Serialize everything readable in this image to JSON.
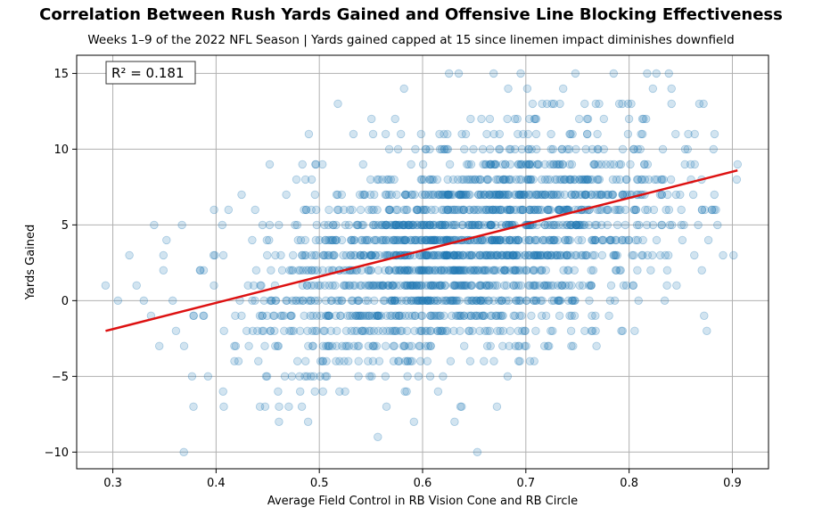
{
  "chart_data": {
    "type": "scatter",
    "title": "Correlation Between Rush Yards Gained and Offensive Line Blocking Effectiveness",
    "subtitle": "Weeks 1–9 of the 2022 NFL Season | Yards gained capped at 15 since linemen impact diminishes downfield",
    "xlabel": "Average Field Control in RB Vision Cone and RB Circle",
    "ylabel": "Yards Gained",
    "xlim": [
      0.265,
      0.935
    ],
    "ylim": [
      -11.1,
      16.2
    ],
    "xticks": [
      "0.3",
      "0.4",
      "0.5",
      "0.6",
      "0.7",
      "0.8",
      "0.9"
    ],
    "xtick_values": [
      0.3,
      0.4,
      0.5,
      0.6,
      0.7,
      0.8,
      0.9
    ],
    "yticks": [
      "−10",
      "−5",
      "0",
      "5",
      "10",
      "15"
    ],
    "ytick_values": [
      -10,
      -5,
      0,
      5,
      10,
      15
    ],
    "grid": true,
    "annotation": "R² = 0.181",
    "point_color": "#1f77b4",
    "point_alpha": 0.2,
    "line_color": "#dd1111",
    "regression": {
      "x": [
        0.293,
        0.905
      ],
      "y": [
        -2.0,
        8.6
      ]
    },
    "sample_points": {
      "x": [
        0.293,
        0.305,
        0.316,
        0.323,
        0.33,
        0.337,
        0.34,
        0.345,
        0.349,
        0.352,
        0.358,
        0.367,
        0.369,
        0.388,
        0.398,
        0.407,
        0.412,
        0.423,
        0.435,
        0.445,
        0.457,
        0.468,
        0.48,
        0.497,
        0.503,
        0.512,
        0.518,
        0.525,
        0.533,
        0.54,
        0.548,
        0.556,
        0.565,
        0.573,
        0.582,
        0.59,
        0.598,
        0.607,
        0.615,
        0.623,
        0.631,
        0.635,
        0.64,
        0.648,
        0.653,
        0.657,
        0.665,
        0.672,
        0.68,
        0.688,
        0.695,
        0.703,
        0.71,
        0.718,
        0.725,
        0.733,
        0.74,
        0.748,
        0.755,
        0.763,
        0.77,
        0.778,
        0.785,
        0.793,
        0.8,
        0.808,
        0.815,
        0.823,
        0.83,
        0.838,
        0.845,
        0.853,
        0.86,
        0.868,
        0.88,
        0.891,
        0.905
      ],
      "y": [
        1,
        0,
        3,
        1,
        0,
        -1,
        5,
        -3,
        2,
        4,
        0,
        5,
        -3,
        2,
        1,
        3,
        6,
        0,
        4,
        5,
        1,
        7,
        2,
        6,
        9,
        0,
        13,
        -6,
        11,
        3,
        -2,
        8,
        -7,
        5,
        14,
        2,
        -4,
        10,
        -6,
        3,
        -8,
        15,
        6,
        1,
        -10,
        12,
        4,
        -7,
        9,
        2,
        15,
        5,
        11,
        -3,
        7,
        13,
        3,
        15,
        8,
        1,
        10,
        6,
        15,
        4,
        12,
        2,
        9,
        14,
        7,
        3,
        11,
        5,
        8,
        13,
        6,
        3,
        9
      ]
    }
  }
}
